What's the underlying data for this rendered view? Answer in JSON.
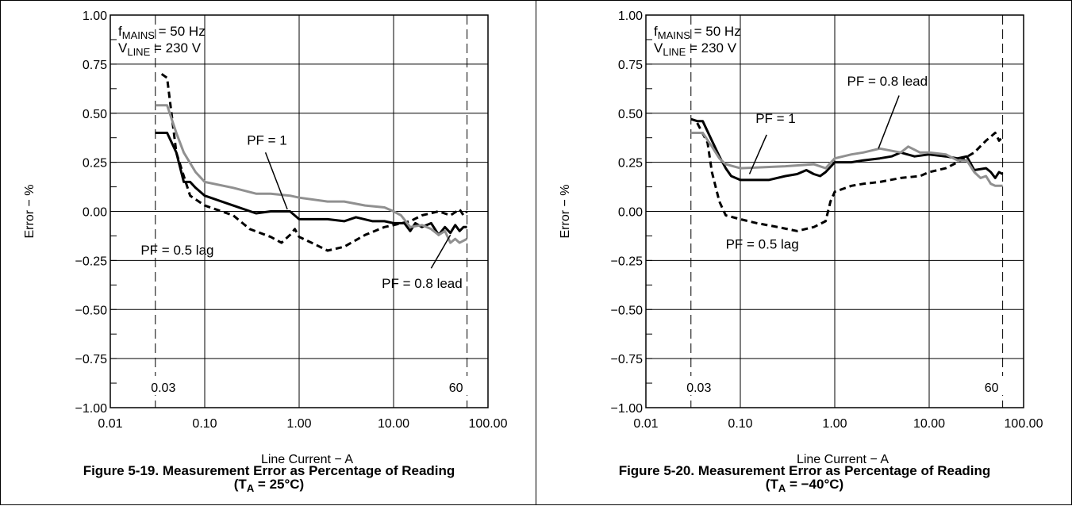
{
  "chart_data": [
    {
      "type": "line",
      "caption_line1": "Figure 5-19. Measurement Error as Percentage of Reading",
      "caption_line2_pre": "(T",
      "caption_line2_sub": "A",
      "caption_line2_post": " = 25°C)",
      "xlabel": "Line Current − A",
      "ylabel": "Error − %",
      "x_scale": "log",
      "xlim": [
        0.01,
        100
      ],
      "ylim": [
        -1.0,
        1.0
      ],
      "x_ticks": [
        "0.01",
        "0.10",
        "1.00",
        "10.00",
        "100.00"
      ],
      "y_ticks": [
        "1.00",
        "0.75",
        "0.50",
        "0.25",
        "0.00",
        "−0.25",
        "−0.50",
        "−0.75",
        "−1.00"
      ],
      "grid": true,
      "conditions": {
        "f_main": "f",
        "f_sub": "MAINS",
        "f_rest": " = 50 Hz",
        "v_main": "V",
        "v_sub": "LINE",
        "v_rest": " = 230 V"
      },
      "markers": [
        {
          "x": 0.03,
          "label": "0.03"
        },
        {
          "x": 60,
          "label": "60"
        }
      ],
      "annotations": [
        {
          "text": "PF = 1",
          "x": 0.28,
          "y": 0.34,
          "arrow_from": [
            0.44,
            0.3
          ],
          "arrow_to": [
            0.75,
            0.01
          ]
        },
        {
          "text": "PF = 0.5 lag",
          "x": 0.021,
          "y": -0.22
        },
        {
          "text": "PF = 0.8 lead",
          "x": 7.5,
          "y": -0.39,
          "arrow_from": [
            25,
            -0.29
          ],
          "arrow_to": [
            40,
            -0.12
          ]
        }
      ],
      "series": [
        {
          "key": "pf1",
          "color": "#000000",
          "style": "solid",
          "points": [
            [
              0.03,
              0.4
            ],
            [
              0.04,
              0.4
            ],
            [
              0.05,
              0.3
            ],
            [
              0.06,
              0.15
            ],
            [
              0.07,
              0.15
            ],
            [
              0.08,
              0.12
            ],
            [
              0.1,
              0.08
            ],
            [
              0.2,
              0.03
            ],
            [
              0.35,
              -0.01
            ],
            [
              0.5,
              0.0
            ],
            [
              0.8,
              0.0
            ],
            [
              1.0,
              -0.04
            ],
            [
              2,
              -0.04
            ],
            [
              3,
              -0.05
            ],
            [
              4,
              -0.03
            ],
            [
              6,
              -0.05
            ],
            [
              8,
              -0.05
            ],
            [
              10,
              -0.06
            ],
            [
              13,
              -0.06
            ],
            [
              15,
              -0.1
            ],
            [
              17,
              -0.06
            ],
            [
              20,
              -0.08
            ],
            [
              25,
              -0.06
            ],
            [
              30,
              -0.12
            ],
            [
              35,
              -0.08
            ],
            [
              40,
              -0.11
            ],
            [
              45,
              -0.07
            ],
            [
              50,
              -0.1
            ],
            [
              55,
              -0.08
            ],
            [
              60,
              -0.08
            ]
          ]
        },
        {
          "key": "pf05lag",
          "color": "#000000",
          "style": "dashed",
          "points": [
            [
              0.035,
              0.7
            ],
            [
              0.04,
              0.68
            ],
            [
              0.05,
              0.3
            ],
            [
              0.06,
              0.18
            ],
            [
              0.07,
              0.08
            ],
            [
              0.1,
              0.03
            ],
            [
              0.2,
              -0.02
            ],
            [
              0.3,
              -0.09
            ],
            [
              0.5,
              -0.13
            ],
            [
              0.65,
              -0.16
            ],
            [
              0.8,
              -0.12
            ],
            [
              0.9,
              -0.09
            ],
            [
              1.0,
              -0.13
            ],
            [
              1.5,
              -0.17
            ],
            [
              2,
              -0.2
            ],
            [
              3,
              -0.18
            ],
            [
              5,
              -0.12
            ],
            [
              8,
              -0.08
            ],
            [
              10,
              -0.07
            ],
            [
              15,
              -0.05
            ],
            [
              20,
              -0.02
            ],
            [
              30,
              0.0
            ],
            [
              40,
              -0.02
            ],
            [
              50,
              0.01
            ],
            [
              55,
              -0.02
            ],
            [
              60,
              0.0
            ]
          ]
        },
        {
          "key": "pf08lead",
          "color": "#909090",
          "style": "solid",
          "points": [
            [
              0.03,
              0.54
            ],
            [
              0.04,
              0.54
            ],
            [
              0.05,
              0.4
            ],
            [
              0.06,
              0.3
            ],
            [
              0.08,
              0.2
            ],
            [
              0.1,
              0.15
            ],
            [
              0.2,
              0.12
            ],
            [
              0.35,
              0.09
            ],
            [
              0.5,
              0.09
            ],
            [
              0.8,
              0.08
            ],
            [
              1.0,
              0.07
            ],
            [
              2,
              0.05
            ],
            [
              3,
              0.05
            ],
            [
              5,
              0.03
            ],
            [
              8,
              0.02
            ],
            [
              10,
              0.0
            ],
            [
              12,
              -0.02
            ],
            [
              15,
              -0.08
            ],
            [
              20,
              -0.07
            ],
            [
              25,
              -0.09
            ],
            [
              30,
              -0.12
            ],
            [
              35,
              -0.1
            ],
            [
              40,
              -0.16
            ],
            [
              45,
              -0.14
            ],
            [
              50,
              -0.16
            ],
            [
              60,
              -0.14
            ]
          ]
        }
      ]
    },
    {
      "type": "line",
      "caption_line1": "Figure 5-20. Measurement Error as Percentage of Reading",
      "caption_line2_pre": "(T",
      "caption_line2_sub": "A",
      "caption_line2_post": " = −40°C)",
      "xlabel": "Line Current − A",
      "ylabel": "Error − %",
      "x_scale": "log",
      "xlim": [
        0.01,
        100
      ],
      "ylim": [
        -1.0,
        1.0
      ],
      "x_ticks": [
        "0.01",
        "0.10",
        "1.00",
        "10.00",
        "100.00"
      ],
      "y_ticks": [
        "1.00",
        "0.75",
        "0.50",
        "0.25",
        "0.00",
        "−0.25",
        "−0.50",
        "−0.75",
        "−1.00"
      ],
      "grid": true,
      "conditions": {
        "f_main": "f",
        "f_sub": "MAINS",
        "f_rest": " = 50 Hz",
        "v_main": "V",
        "v_sub": "LINE",
        "v_rest": " = 230 V"
      },
      "markers": [
        {
          "x": 0.03,
          "label": "0.03"
        },
        {
          "x": 60,
          "label": "60"
        }
      ],
      "annotations": [
        {
          "text": "PF = 1",
          "x": 0.145,
          "y": 0.45,
          "arrow_from": [
            0.19,
            0.39
          ],
          "arrow_to": [
            0.125,
            0.19
          ]
        },
        {
          "text": "PF = 0.8 lead",
          "x": 1.35,
          "y": 0.64,
          "arrow_from": [
            4.8,
            0.59
          ],
          "arrow_to": [
            2.9,
            0.32
          ]
        },
        {
          "text": "PF = 0.5 lag",
          "x": 0.07,
          "y": -0.19
        }
      ],
      "series": [
        {
          "key": "pf1",
          "color": "#000000",
          "style": "solid",
          "points": [
            [
              0.03,
              0.47
            ],
            [
              0.035,
              0.46
            ],
            [
              0.04,
              0.46
            ],
            [
              0.05,
              0.36
            ],
            [
              0.06,
              0.28
            ],
            [
              0.07,
              0.22
            ],
            [
              0.08,
              0.18
            ],
            [
              0.1,
              0.16
            ],
            [
              0.2,
              0.16
            ],
            [
              0.3,
              0.18
            ],
            [
              0.4,
              0.19
            ],
            [
              0.5,
              0.21
            ],
            [
              0.6,
              0.19
            ],
            [
              0.7,
              0.18
            ],
            [
              0.8,
              0.2
            ],
            [
              1.0,
              0.25
            ],
            [
              1.5,
              0.25
            ],
            [
              2,
              0.26
            ],
            [
              3,
              0.27
            ],
            [
              4,
              0.28
            ],
            [
              5,
              0.3
            ],
            [
              7,
              0.28
            ],
            [
              10,
              0.29
            ],
            [
              15,
              0.28
            ],
            [
              20,
              0.27
            ],
            [
              25,
              0.28
            ],
            [
              30,
              0.21
            ],
            [
              40,
              0.22
            ],
            [
              45,
              0.2
            ],
            [
              50,
              0.17
            ],
            [
              55,
              0.2
            ],
            [
              60,
              0.19
            ]
          ]
        },
        {
          "key": "pf05lag",
          "color": "#000000",
          "style": "dashed",
          "points": [
            [
              0.035,
              0.45
            ],
            [
              0.045,
              0.35
            ],
            [
              0.05,
              0.2
            ],
            [
              0.06,
              0.05
            ],
            [
              0.07,
              -0.02
            ],
            [
              0.1,
              -0.04
            ],
            [
              0.15,
              -0.06
            ],
            [
              0.25,
              -0.08
            ],
            [
              0.4,
              -0.1
            ],
            [
              0.6,
              -0.08
            ],
            [
              0.8,
              -0.05
            ],
            [
              0.9,
              0.05
            ],
            [
              1.0,
              0.1
            ],
            [
              1.5,
              0.13
            ],
            [
              2,
              0.14
            ],
            [
              3,
              0.15
            ],
            [
              5,
              0.17
            ],
            [
              8,
              0.18
            ],
            [
              10,
              0.2
            ],
            [
              15,
              0.22
            ],
            [
              20,
              0.25
            ],
            [
              30,
              0.3
            ],
            [
              40,
              0.36
            ],
            [
              50,
              0.4
            ],
            [
              55,
              0.36
            ],
            [
              60,
              0.38
            ]
          ]
        },
        {
          "key": "pf08lead",
          "color": "#909090",
          "style": "solid",
          "points": [
            [
              0.03,
              0.4
            ],
            [
              0.04,
              0.4
            ],
            [
              0.05,
              0.33
            ],
            [
              0.06,
              0.27
            ],
            [
              0.07,
              0.24
            ],
            [
              0.1,
              0.22
            ],
            [
              0.3,
              0.23
            ],
            [
              0.6,
              0.24
            ],
            [
              0.8,
              0.22
            ],
            [
              1.0,
              0.27
            ],
            [
              1.5,
              0.29
            ],
            [
              2,
              0.3
            ],
            [
              3,
              0.32
            ],
            [
              5,
              0.3
            ],
            [
              6,
              0.33
            ],
            [
              8,
              0.3
            ],
            [
              10,
              0.3
            ],
            [
              15,
              0.29
            ],
            [
              20,
              0.26
            ],
            [
              25,
              0.26
            ],
            [
              30,
              0.2
            ],
            [
              35,
              0.17
            ],
            [
              40,
              0.18
            ],
            [
              45,
              0.14
            ],
            [
              50,
              0.13
            ],
            [
              60,
              0.13
            ]
          ]
        }
      ]
    }
  ]
}
